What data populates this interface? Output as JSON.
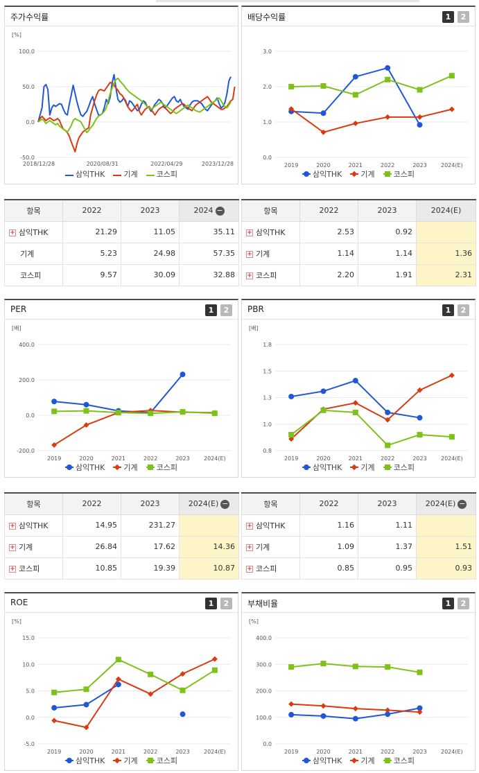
{
  "colors": {
    "samik": "#1f57d6",
    "machine": "#d93a10",
    "kospi": "#7cc219",
    "grid": "#e8e8e8",
    "highlight": "#fdf5c8"
  },
  "series_names": {
    "samik": "삼익THK",
    "machine": "기계",
    "kospi": "코스피"
  },
  "panels": {
    "stock": {
      "title": "주가수익률",
      "unit": "[%]",
      "pager": []
    },
    "dividend": {
      "title": "배당수익률",
      "unit": "",
      "pager": [
        "1",
        "2"
      ]
    },
    "per": {
      "title": "PER",
      "unit": "[배]",
      "pager": [
        "1",
        "2"
      ]
    },
    "pbr": {
      "title": "PBR",
      "unit": "[배]",
      "pager": [
        "1",
        "2"
      ]
    },
    "roe": {
      "title": "ROE",
      "unit": "[%]",
      "pager": [
        "1",
        "2"
      ]
    },
    "debt": {
      "title": "부채비율",
      "unit": "[%]",
      "pager": [
        "1",
        "2"
      ]
    }
  },
  "chart_data": [
    {
      "id": "stock",
      "type": "line",
      "ylim": [
        -50,
        100
      ],
      "y_ticks": [
        "100.0",
        "50.0",
        "0.0",
        "-50.0"
      ],
      "y_tick_values": [
        100,
        50,
        0,
        -50
      ],
      "x_tick_labels": [
        "2018/12/28",
        "2020/08/31",
        "2022/04/29",
        "2023/12/28"
      ],
      "x_count": 100,
      "series": [
        {
          "name": "삼익THK",
          "key": "samik",
          "values": [
            0,
            10,
            20,
            50,
            53,
            46,
            10,
            20,
            24,
            22,
            24,
            26,
            25,
            18,
            12,
            10,
            25,
            38,
            52,
            40,
            28,
            18,
            10,
            8,
            12,
            15,
            22,
            30,
            36,
            26,
            18,
            10,
            10,
            12,
            20,
            32,
            26,
            35,
            55,
            67,
            48,
            32,
            28,
            30,
            34,
            28,
            22,
            30,
            28,
            24,
            20,
            16,
            18,
            25,
            30,
            28,
            22,
            20,
            15,
            20,
            25,
            28,
            32,
            30,
            26,
            20,
            22,
            26,
            30,
            34,
            36,
            30,
            28,
            32,
            26,
            22,
            20,
            18,
            24,
            28,
            30,
            30,
            30,
            28,
            26,
            22,
            18,
            16,
            20,
            24,
            28,
            30,
            34,
            26,
            20,
            22,
            28,
            40,
            58,
            64
          ]
        },
        {
          "name": "기계",
          "key": "machine",
          "values": [
            0,
            5,
            8,
            5,
            2,
            4,
            6,
            4,
            2,
            3,
            5,
            2,
            -5,
            -10,
            -12,
            -15,
            -20,
            -28,
            -35,
            -42,
            -30,
            -22,
            -18,
            -14,
            -12,
            -10,
            -8,
            10,
            20,
            30,
            38,
            44,
            46,
            45,
            44,
            48,
            52,
            56,
            55,
            52,
            48,
            45,
            40,
            38,
            34,
            30,
            22,
            18,
            15,
            18,
            22,
            25,
            15,
            10,
            14,
            18,
            20,
            22,
            18,
            14,
            10,
            14,
            18,
            20,
            22,
            20,
            18,
            15,
            12,
            14,
            18,
            20,
            22,
            24,
            26,
            25,
            22,
            20,
            18,
            16,
            20,
            24,
            26,
            28,
            30,
            32,
            34,
            36,
            32,
            28,
            26,
            24,
            22,
            20,
            18,
            18,
            20,
            22,
            26,
            30,
            32,
            50
          ]
        },
        {
          "name": "코스피",
          "key": "kospi",
          "values": [
            0,
            2,
            4,
            2,
            -2,
            0,
            2,
            0,
            -2,
            -4,
            -2,
            -6,
            -8,
            -10,
            -12,
            -14,
            -10,
            -5,
            2,
            5,
            3,
            2,
            0,
            -5,
            -10,
            -15,
            -12,
            -8,
            -5,
            0,
            5,
            8,
            10,
            12,
            15,
            20,
            30,
            40,
            48,
            55,
            60,
            62,
            58,
            55,
            52,
            48,
            45,
            42,
            40,
            38,
            36,
            34,
            32,
            30,
            28,
            25,
            22,
            20,
            18,
            20,
            22,
            24,
            26,
            28,
            26,
            24,
            22,
            20,
            18,
            16,
            14,
            12,
            14,
            16,
            18,
            20,
            22,
            24,
            22,
            20,
            18,
            16,
            15,
            14,
            16,
            18,
            20,
            22,
            24,
            26,
            28,
            30,
            32,
            34,
            30,
            25,
            22,
            20,
            24,
            28
          ]
        }
      ]
    },
    {
      "id": "dividend",
      "type": "line",
      "ylim": [
        0,
        3
      ],
      "y_ticks": [
        "3.0",
        "2.0",
        "1.0",
        "0.0"
      ],
      "y_tick_values": [
        3,
        2,
        1,
        0
      ],
      "categories": [
        "2019",
        "2020",
        "2021",
        "2022",
        "2023",
        "2024(E)"
      ],
      "series": [
        {
          "name": "삼익THK",
          "key": "samik",
          "values": [
            1.3,
            1.25,
            2.28,
            2.53,
            0.92,
            null
          ]
        },
        {
          "name": "기계",
          "key": "machine",
          "values": [
            1.37,
            0.71,
            0.96,
            1.14,
            1.14,
            1.36
          ]
        },
        {
          "name": "코스피",
          "key": "kospi",
          "values": [
            2.0,
            2.02,
            1.77,
            2.2,
            1.91,
            2.31
          ]
        }
      ]
    },
    {
      "id": "per",
      "type": "line",
      "ylim": [
        -200,
        400
      ],
      "y_ticks": [
        "400.0",
        "200.0",
        "0.0",
        "-200.0"
      ],
      "y_tick_values": [
        400,
        200,
        0,
        -200
      ],
      "categories": [
        "2019",
        "2020",
        "2021",
        "2022",
        "2023",
        "2024(E)"
      ],
      "series": [
        {
          "name": "삼익THK",
          "key": "samik",
          "values": [
            78,
            60,
            25,
            14.95,
            231.27,
            null
          ]
        },
        {
          "name": "기계",
          "key": "machine",
          "values": [
            -168,
            -55,
            15,
            26.84,
            17.62,
            14.36
          ]
        },
        {
          "name": "코스피",
          "key": "kospi",
          "values": [
            22,
            25,
            15,
            10.85,
            19.39,
            10.87
          ]
        }
      ]
    },
    {
      "id": "pbr",
      "type": "line",
      "ylim": [
        0.8,
        1.8
      ],
      "y_ticks": [
        "1.8",
        "1.5",
        "1.3",
        "1.0",
        "0.8"
      ],
      "y_tick_values": [
        1.8,
        1.55,
        1.3,
        1.05,
        0.8
      ],
      "categories": [
        "2019",
        "2020",
        "2021",
        "2022",
        "2023",
        "2024(E)"
      ],
      "series": [
        {
          "name": "삼익THK",
          "key": "samik",
          "values": [
            1.31,
            1.36,
            1.46,
            1.16,
            1.11,
            null
          ]
        },
        {
          "name": "기계",
          "key": "machine",
          "values": [
            0.91,
            1.19,
            1.25,
            1.09,
            1.37,
            1.51
          ]
        },
        {
          "name": "코스피",
          "key": "kospi",
          "values": [
            0.95,
            1.18,
            1.16,
            0.85,
            0.95,
            0.93
          ]
        }
      ]
    },
    {
      "id": "roe",
      "type": "line",
      "ylim": [
        -5,
        15
      ],
      "y_ticks": [
        "15.0",
        "10.0",
        "5.0",
        "0.0",
        "-5.0"
      ],
      "y_tick_values": [
        15,
        10,
        5,
        0,
        -5
      ],
      "categories": [
        "2019",
        "2020",
        "2021",
        "2022",
        "2023",
        "2024(E)"
      ],
      "series": [
        {
          "name": "삼익THK",
          "key": "samik",
          "values": [
            1.8,
            2.4,
            6.2,
            null,
            0.6,
            null
          ]
        },
        {
          "name": "기계",
          "key": "machine",
          "values": [
            -0.6,
            -1.9,
            7.2,
            4.4,
            8.2,
            11.0
          ]
        },
        {
          "name": "코스피",
          "key": "kospi",
          "values": [
            4.7,
            5.3,
            10.9,
            8.1,
            5.1,
            8.9
          ]
        }
      ]
    },
    {
      "id": "debt",
      "type": "line",
      "ylim": [
        0,
        400
      ],
      "y_ticks": [
        "400.0",
        "300.0",
        "200.0",
        "100.0",
        "0.0"
      ],
      "y_tick_values": [
        400,
        300,
        200,
        100,
        0
      ],
      "categories": [
        "2019",
        "2020",
        "2021",
        "2022",
        "2023",
        "2024(E)"
      ],
      "series": [
        {
          "name": "삼익THK",
          "key": "samik",
          "values": [
            110,
            105,
            95,
            112,
            135,
            null
          ]
        },
        {
          "name": "기계",
          "key": "machine",
          "values": [
            150,
            143,
            133,
            127,
            120,
            null
          ]
        },
        {
          "name": "코스피",
          "key": "kospi",
          "values": [
            290,
            303,
            292,
            290,
            270,
            null
          ]
        }
      ]
    }
  ],
  "tables": {
    "stock": {
      "header": [
        "항목",
        "2022",
        "2023",
        "2024"
      ],
      "has_minus": true,
      "rows": [
        {
          "name": "삼익THK",
          "plus": true,
          "values": [
            "21.29",
            "11.05",
            "35.11"
          ]
        },
        {
          "name": "기계",
          "plus": false,
          "values": [
            "5.23",
            "24.98",
            "57.35"
          ]
        },
        {
          "name": "코스피",
          "plus": false,
          "values": [
            "9.57",
            "30.09",
            "32.88"
          ]
        }
      ]
    },
    "dividend": {
      "header": [
        "항목",
        "2022",
        "2023",
        "2024(E)"
      ],
      "has_minus": false,
      "rows": [
        {
          "name": "삼익THK",
          "plus": true,
          "values": [
            "2.53",
            "0.92",
            ""
          ]
        },
        {
          "name": "기계",
          "plus": true,
          "values": [
            "1.14",
            "1.14",
            "1.36"
          ]
        },
        {
          "name": "코스피",
          "plus": true,
          "values": [
            "2.20",
            "1.91",
            "2.31"
          ]
        }
      ]
    },
    "per": {
      "header": [
        "항목",
        "2022",
        "2023",
        "2024(E)"
      ],
      "has_minus": true,
      "rows": [
        {
          "name": "삼익THK",
          "plus": true,
          "values": [
            "14.95",
            "231.27",
            ""
          ]
        },
        {
          "name": "기계",
          "plus": true,
          "values": [
            "26.84",
            "17.62",
            "14.36"
          ]
        },
        {
          "name": "코스피",
          "plus": true,
          "values": [
            "10.85",
            "19.39",
            "10.87"
          ]
        }
      ]
    },
    "pbr": {
      "header": [
        "항목",
        "2022",
        "2023",
        "2024(E)"
      ],
      "has_minus": true,
      "rows": [
        {
          "name": "삼익THK",
          "plus": true,
          "values": [
            "1.16",
            "1.11",
            ""
          ]
        },
        {
          "name": "기계",
          "plus": true,
          "values": [
            "1.09",
            "1.37",
            "1.51"
          ]
        },
        {
          "name": "코스피",
          "plus": true,
          "values": [
            "0.85",
            "0.95",
            "0.93"
          ]
        }
      ]
    }
  }
}
